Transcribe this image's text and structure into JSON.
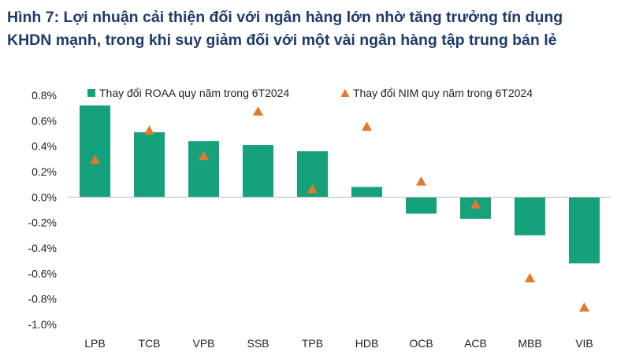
{
  "figure": {
    "title_line1": "Hình 7: Lợi nhuận cải thiện đối với ngân hàng lớn nhờ tăng trưởng tín dụng",
    "title_line2": "KHDN mạnh, trong khi suy giảm đối với một vài ngân hàng tập trung bán lẻ"
  },
  "chart_data": {
    "type": "bar",
    "categories": [
      "LPB",
      "TCB",
      "VPB",
      "SSB",
      "TPB",
      "HDB",
      "OCB",
      "ACB",
      "MBB",
      "VIB"
    ],
    "series": [
      {
        "name": "Thay đổi ROAA quy năm trong 6T2024",
        "type": "bar",
        "color": "#14a17c",
        "values": [
          0.72,
          0.51,
          0.44,
          0.41,
          0.36,
          0.08,
          -0.13,
          -0.17,
          -0.3,
          -0.52
        ]
      },
      {
        "name": "Thay đổi NIM quy năm trong 6T2024",
        "type": "scatter",
        "marker": "triangle",
        "color": "#e07b2e",
        "values": [
          0.29,
          0.52,
          0.32,
          0.67,
          0.06,
          0.55,
          0.12,
          -0.06,
          -0.64,
          -0.87
        ]
      }
    ],
    "ylim": [
      -1.0,
      0.8
    ],
    "yticks": [
      "0.8%",
      "0.6%",
      "0.4%",
      "0.2%",
      "0.0%",
      "-0.2%",
      "-0.4%",
      "-0.6%",
      "-0.8%",
      "-1.0%"
    ],
    "ytick_values": [
      0.8,
      0.6,
      0.4,
      0.2,
      0.0,
      -0.2,
      -0.4,
      -0.6,
      -0.8,
      -1.0
    ],
    "grid": false,
    "legend_position": "top"
  }
}
